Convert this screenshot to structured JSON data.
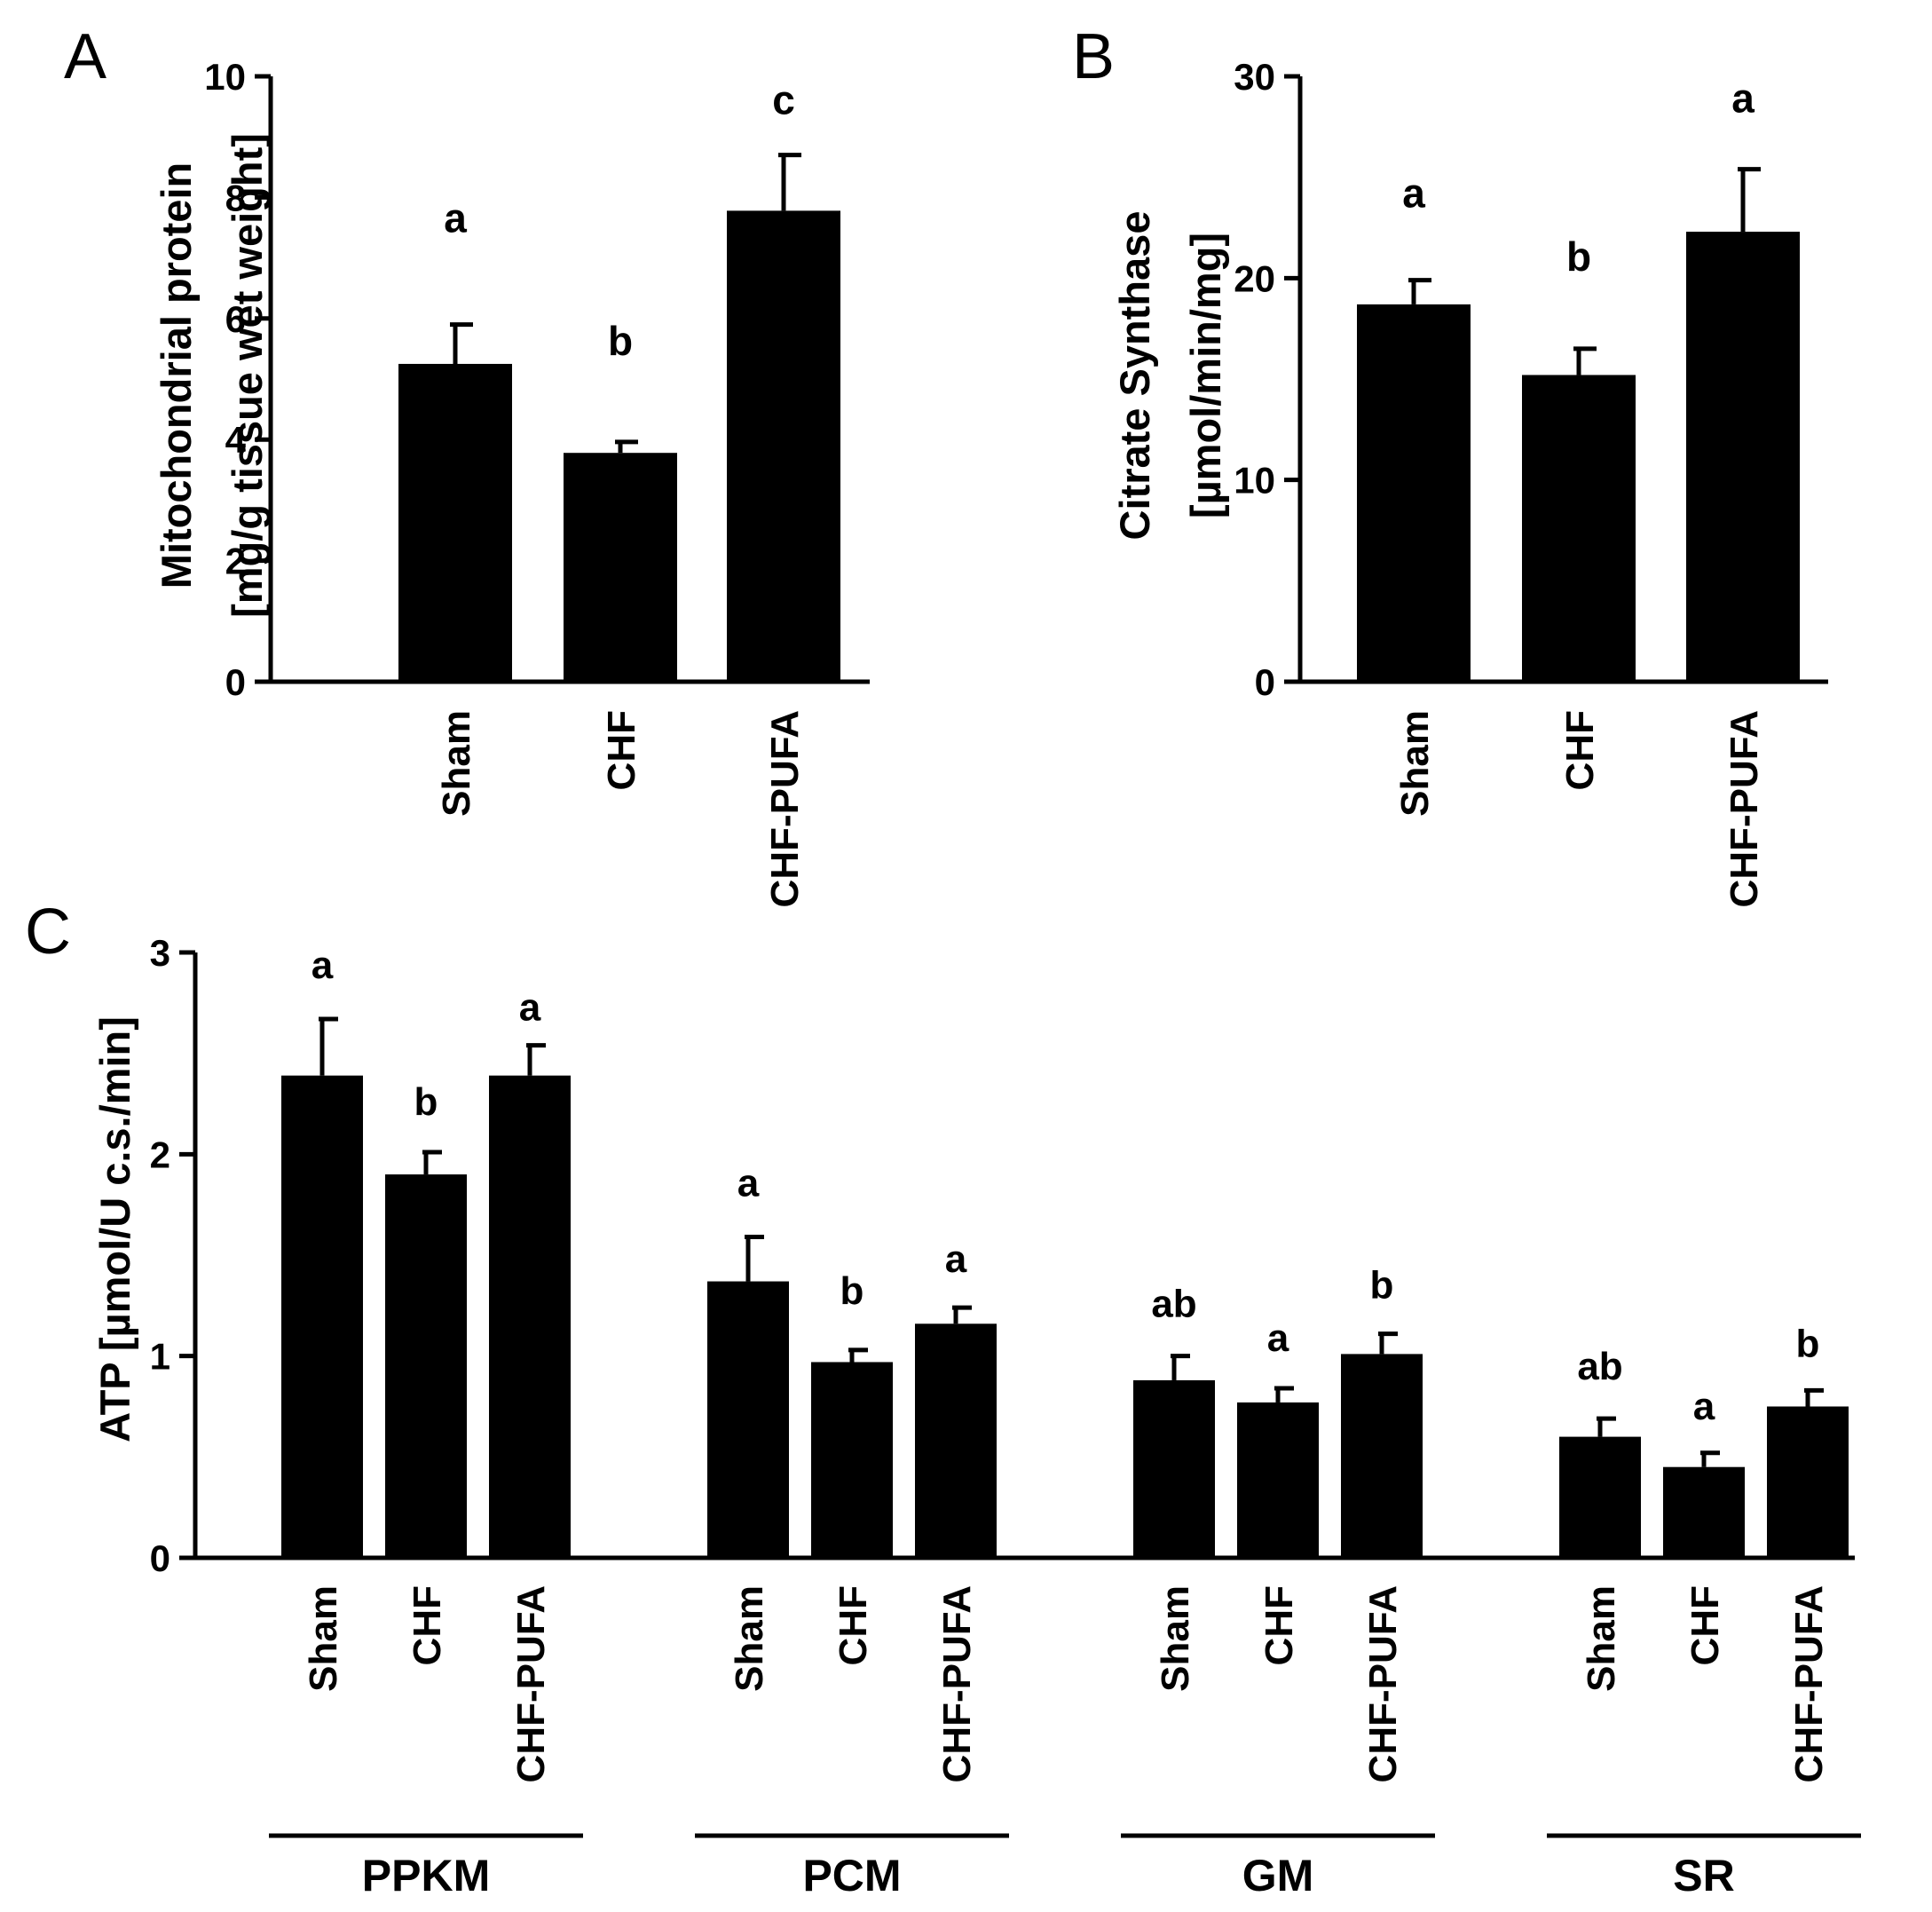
{
  "chart_data": [
    {
      "type": "bar",
      "panel_label": "A",
      "ylabel_lines": [
        "Mitochondrial protein",
        "[mg/g tissue wet weight]"
      ],
      "categories": [
        "Sham",
        "CHF",
        "CHF-PUFA"
      ],
      "values": [
        5.25,
        3.78,
        7.78
      ],
      "errors": [
        0.65,
        0.18,
        0.92
      ],
      "significance": [
        "a",
        "b",
        "c"
      ],
      "ylim": [
        0,
        10
      ],
      "yticks": [
        0,
        2,
        4,
        6,
        8,
        10
      ],
      "ytick_labels": [
        "0",
        "2",
        "4",
        "6",
        "8",
        "10"
      ]
    },
    {
      "type": "bar",
      "panel_label": "B",
      "ylabel_lines": [
        "Citrate Synthase",
        "[µmol/min/mg]"
      ],
      "categories": [
        "Sham",
        "CHF",
        "CHF-PUFA"
      ],
      "values": [
        18.7,
        15.2,
        22.3
      ],
      "errors": [
        1.2,
        1.3,
        3.1
      ],
      "significance": [
        "a",
        "b",
        "a"
      ],
      "ylim": [
        0,
        30
      ],
      "yticks": [
        0,
        10,
        20,
        30
      ],
      "ytick_labels": [
        "0",
        "10",
        "20",
        "30"
      ]
    },
    {
      "type": "bar",
      "panel_label": "C",
      "ylabel_lines": [
        "ATP [µmol/U c.s./min]"
      ],
      "groups": [
        {
          "name": "PPKM",
          "categories": [
            "Sham",
            "CHF",
            "CHF-PUFA"
          ],
          "values": [
            2.39,
            1.9,
            2.39
          ],
          "errors": [
            0.28,
            0.11,
            0.15
          ],
          "significance": [
            "a",
            "b",
            "a"
          ]
        },
        {
          "name": "PCM",
          "categories": [
            "Sham",
            "CHF",
            "CHF-PUFA"
          ],
          "values": [
            1.37,
            0.97,
            1.16
          ],
          "errors": [
            0.22,
            0.06,
            0.08
          ],
          "significance": [
            "a",
            "b",
            "a"
          ]
        },
        {
          "name": "GM",
          "categories": [
            "Sham",
            "CHF",
            "CHF-PUFA"
          ],
          "values": [
            0.88,
            0.77,
            1.01
          ],
          "errors": [
            0.12,
            0.07,
            0.1
          ],
          "significance": [
            "ab",
            "a",
            "b"
          ]
        },
        {
          "name": "SR",
          "categories": [
            "Sham",
            "CHF",
            "CHF-PUFA"
          ],
          "values": [
            0.6,
            0.45,
            0.75
          ],
          "errors": [
            0.09,
            0.07,
            0.08
          ],
          "significance": [
            "ab",
            "a",
            "b"
          ]
        }
      ],
      "ylim": [
        0,
        3
      ],
      "yticks": [
        0,
        1,
        2,
        3
      ],
      "ytick_labels": [
        "0",
        "1",
        "2",
        "3"
      ]
    }
  ]
}
